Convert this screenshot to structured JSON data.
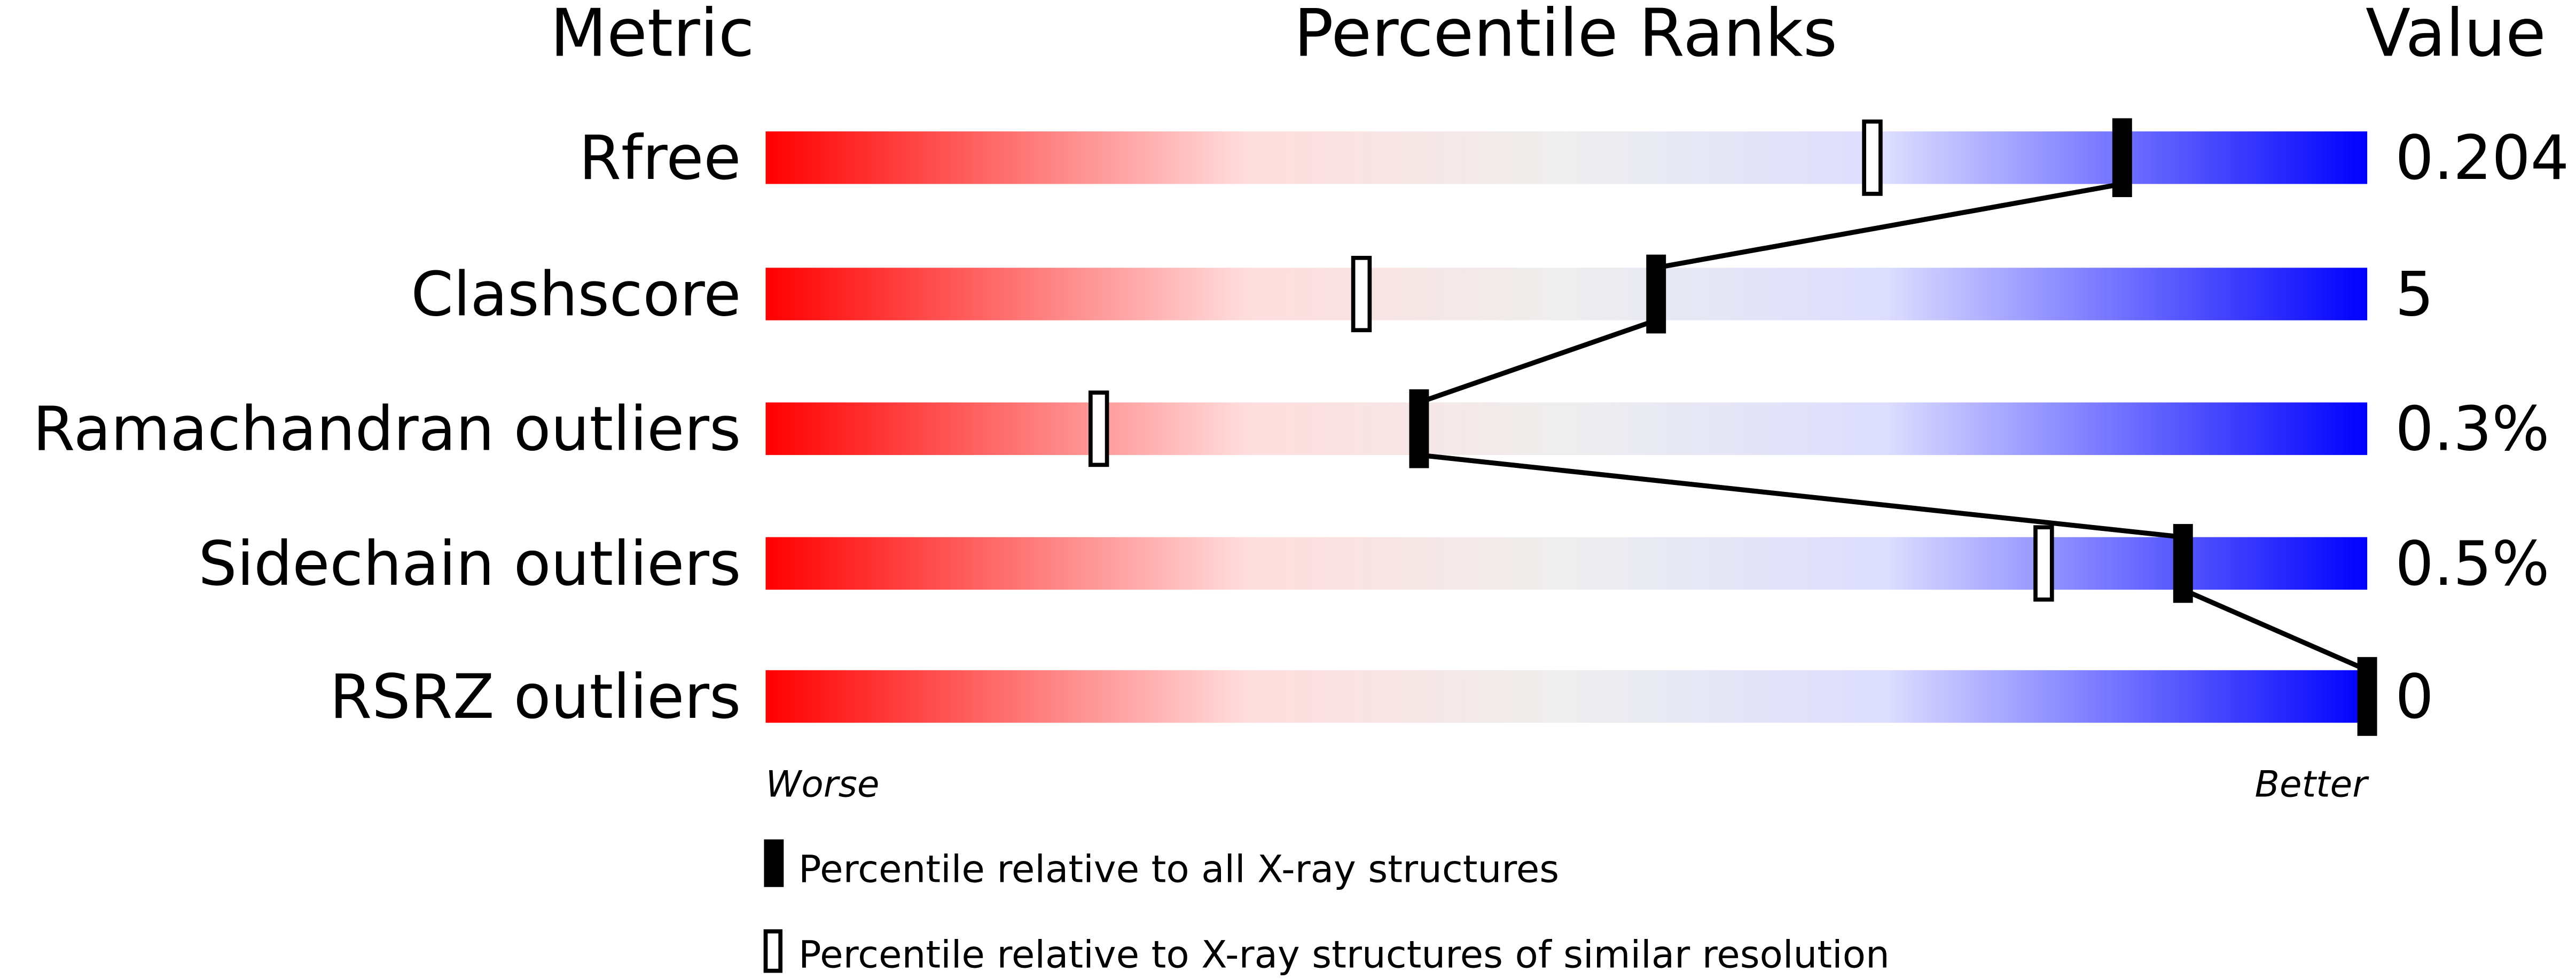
{
  "chart_data": {
    "type": "percentile-slider",
    "headers": {
      "metric": "Metric",
      "ranks": "Percentile Ranks",
      "value": "Value"
    },
    "xlim": [
      0,
      100
    ],
    "gradient_colors": [
      "#ff0000",
      "#ffdddd",
      "#eeeeee",
      "#ddddff",
      "#0000ff"
    ],
    "rows": [
      {
        "metric": "Rfree",
        "value": "0.204",
        "percentile_all": 84.7,
        "percentile_similar": 69.1
      },
      {
        "metric": "Clashscore",
        "value": "5",
        "percentile_all": 55.6,
        "percentile_similar": 37.2
      },
      {
        "metric": "Ramachandran outliers",
        "value": "0.3%",
        "percentile_all": 40.8,
        "percentile_similar": 20.8
      },
      {
        "metric": "Sidechain outliers",
        "value": "0.5%",
        "percentile_all": 88.5,
        "percentile_similar": 79.8
      },
      {
        "metric": "RSRZ outliers",
        "value": "0",
        "percentile_all": 100,
        "percentile_similar": null
      }
    ],
    "axis_labels": {
      "left": "Worse",
      "right": "Better"
    },
    "legend": [
      {
        "marker": "filled",
        "label": "Percentile relative to all X-ray structures"
      },
      {
        "marker": "open",
        "label": "Percentile relative to X-ray structures of similar resolution"
      }
    ]
  }
}
